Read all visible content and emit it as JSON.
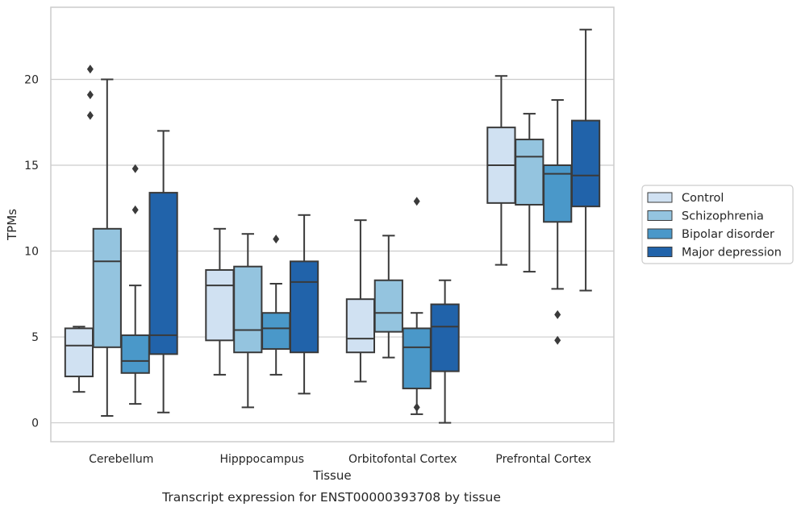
{
  "chart_data": {
    "type": "boxplot",
    "title": "",
    "caption": "Transcript expression for ENST00000393708 by tissue",
    "xlabel": "Tissue",
    "ylabel": "TPMs",
    "ylim": [
      -1.1,
      24.2
    ],
    "yticks": [
      0,
      5,
      10,
      15,
      20
    ],
    "grid": "horizontal",
    "legend_placement": "right, outside plot",
    "categories": [
      "Cerebellum",
      "Hipppocampus",
      "Orbitofontal Cortex",
      "Prefrontal Cortex"
    ],
    "series": [
      {
        "name": "Control",
        "color": "#d0e1f2",
        "boxes": [
          {
            "min": 1.8,
            "q1": 2.7,
            "median": 4.5,
            "q3": 5.5,
            "max": 5.6,
            "outliers": []
          },
          {
            "min": 2.8,
            "q1": 4.8,
            "median": 8.0,
            "q3": 8.9,
            "max": 11.3,
            "outliers": []
          },
          {
            "min": 2.4,
            "q1": 4.1,
            "median": 4.9,
            "q3": 7.2,
            "max": 11.8,
            "outliers": []
          },
          {
            "min": 9.2,
            "q1": 12.8,
            "median": 15.0,
            "q3": 17.2,
            "max": 20.2,
            "outliers": []
          }
        ]
      },
      {
        "name": "Schizophrenia",
        "color": "#94c4df",
        "boxes": [
          {
            "min": 0.4,
            "q1": 4.4,
            "median": 9.4,
            "q3": 11.3,
            "max": 20.0,
            "outliers": []
          },
          {
            "min": 0.9,
            "q1": 4.1,
            "median": 5.4,
            "q3": 9.1,
            "max": 11.0,
            "outliers": []
          },
          {
            "min": 3.8,
            "q1": 5.3,
            "median": 6.4,
            "q3": 8.3,
            "max": 10.9,
            "outliers": []
          },
          {
            "min": 8.8,
            "q1": 12.7,
            "median": 15.5,
            "q3": 16.5,
            "max": 18.0,
            "outliers": []
          }
        ]
      },
      {
        "name": "Bipolar disorder",
        "color": "#4a98c9",
        "boxes": [
          {
            "min": 1.1,
            "q1": 2.9,
            "median": 3.6,
            "q3": 5.1,
            "max": 8.0,
            "outliers": [
              12.4,
              14.8
            ]
          },
          {
            "min": 2.8,
            "q1": 4.3,
            "median": 5.5,
            "q3": 6.4,
            "max": 8.1,
            "outliers": [
              10.7
            ]
          },
          {
            "min": 0.5,
            "q1": 2.0,
            "median": 4.4,
            "q3": 5.5,
            "max": 6.4,
            "outliers": [
              0.9,
              12.9
            ]
          },
          {
            "min": 7.8,
            "q1": 11.7,
            "median": 14.5,
            "q3": 15.0,
            "max": 18.8,
            "outliers": [
              4.8,
              6.3
            ]
          }
        ]
      },
      {
        "name": "Major depression",
        "color": "#2163aa",
        "boxes": [
          {
            "min": 0.6,
            "q1": 4.0,
            "median": 5.1,
            "q3": 13.4,
            "max": 17.0,
            "outliers": []
          },
          {
            "min": 1.7,
            "q1": 4.1,
            "median": 8.2,
            "q3": 9.4,
            "max": 12.1,
            "outliers": []
          },
          {
            "min": 0.0,
            "q1": 3.0,
            "median": 5.6,
            "q3": 6.9,
            "max": 8.3,
            "outliers": []
          },
          {
            "min": 7.7,
            "q1": 12.6,
            "median": 14.4,
            "q3": 17.6,
            "max": 22.9,
            "outliers": []
          }
        ]
      }
    ],
    "extra_outliers": [
      {
        "category": "Cerebellum",
        "series": "Control",
        "values": [
          17.9,
          19.1,
          20.6
        ]
      }
    ]
  }
}
